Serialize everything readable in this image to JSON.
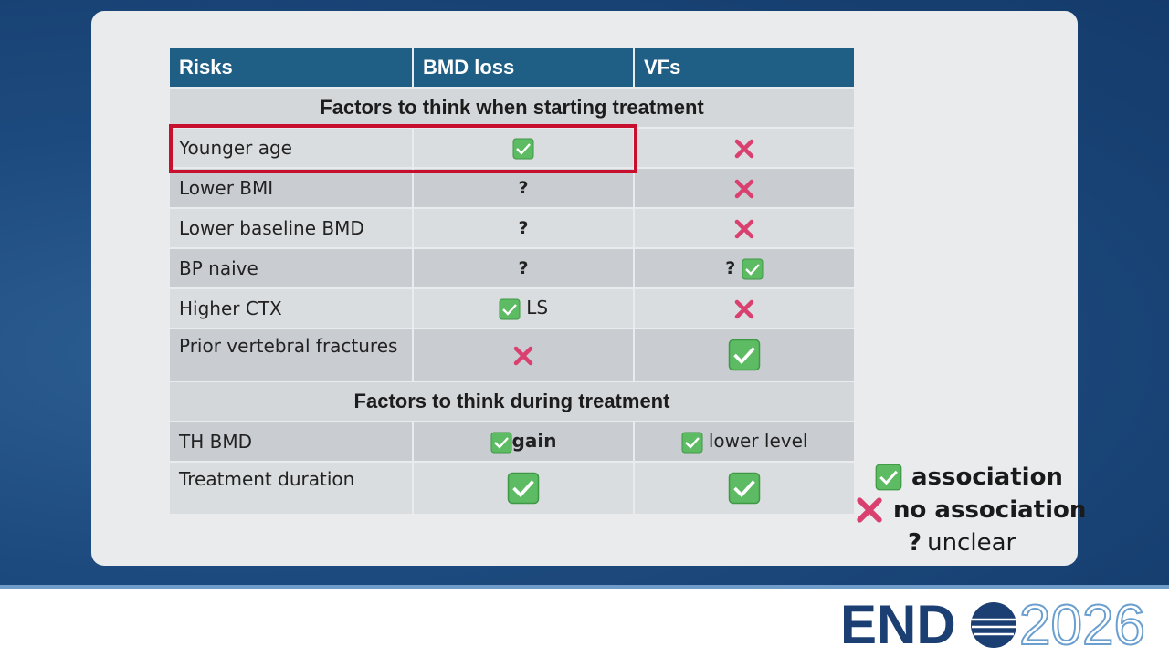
{
  "table": {
    "header": [
      "Risks",
      "BMD loss",
      "VFs"
    ],
    "sections": [
      {
        "title": "Factors to think when starting treatment",
        "rows": [
          {
            "label": "Younger age"
          },
          {
            "label": "Lower BMI",
            "bmd_loss": "?"
          },
          {
            "label": "Lower baseline BMD",
            "bmd_loss": "?"
          },
          {
            "label": "BP naive",
            "bmd_loss": "?",
            "vfs": "?"
          },
          {
            "label": "Higher CTX",
            "bmd_loss": "LS"
          },
          {
            "label": "Prior vertebral fractures"
          }
        ]
      },
      {
        "title": "Factors to think during treatment",
        "rows": [
          {
            "label": "TH BMD",
            "bmd_loss": "gain",
            "vfs": "lower level"
          },
          {
            "label": "Treatment duration"
          }
        ]
      }
    ]
  },
  "legend": {
    "association": "association",
    "no_association": "no association",
    "unclear_symbol": "?",
    "unclear": "unclear"
  },
  "logo": {
    "name": "END",
    "year": "2026"
  }
}
